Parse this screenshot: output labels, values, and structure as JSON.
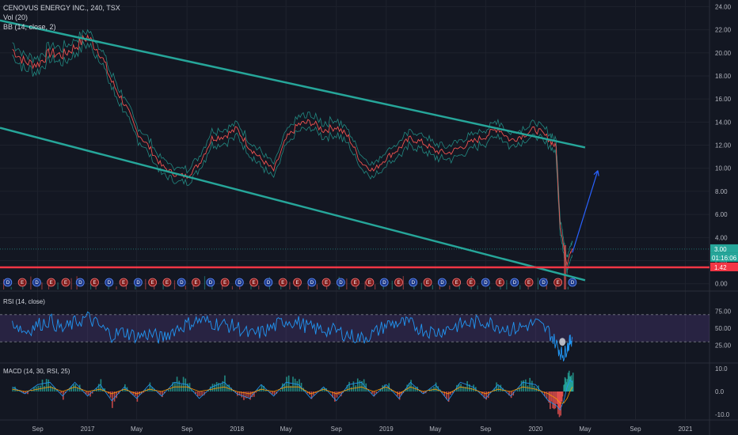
{
  "header": {
    "symbol": "CENOVUS ENERGY INC., 240, TSX",
    "vol_label": "Vol (20)",
    "bb_label": "BB (14, close, 2)"
  },
  "panes": {
    "rsi_label": "RSI (14, close)",
    "macd_label": "MACD (14, 30, RSI, 25)"
  },
  "chart_data": {
    "type": "line",
    "price": {
      "y_ticks": [
        "24.00",
        "22.00",
        "20.00",
        "18.00",
        "16.00",
        "14.00",
        "12.00",
        "10.00",
        "8.00",
        "6.00",
        "4.00",
        "2.00",
        "0.00"
      ],
      "ylim": [
        -0.5,
        24.3
      ],
      "x": [
        "2016-07",
        "2016-08",
        "2016-09",
        "2016-10",
        "2016-11",
        "2016-12",
        "2017-01",
        "2017-02",
        "2017-03",
        "2017-04",
        "2017-05",
        "2017-06",
        "2017-07",
        "2017-08",
        "2017-09",
        "2017-10",
        "2017-11",
        "2017-12",
        "2018-01",
        "2018-02",
        "2018-03",
        "2018-04",
        "2018-05",
        "2018-06",
        "2018-07",
        "2018-08",
        "2018-09",
        "2018-10",
        "2018-11",
        "2018-12",
        "2019-01",
        "2019-02",
        "2019-03",
        "2019-04",
        "2019-05",
        "2019-06",
        "2019-07",
        "2019-08",
        "2019-09",
        "2019-10",
        "2019-11",
        "2019-12",
        "2020-01",
        "2020-02",
        "2020-02-20",
        "2020-03",
        "2020-03-10",
        "2020-03-18",
        "2020-03-25",
        "2020-03-31"
      ],
      "close": [
        20.3,
        19.2,
        19.0,
        20.0,
        19.8,
        20.5,
        21.4,
        20.0,
        17.5,
        15.6,
        13.2,
        11.8,
        10.2,
        9.5,
        9.3,
        10.4,
        12.6,
        12.8,
        13.4,
        11.8,
        10.8,
        9.8,
        12.5,
        13.8,
        14.0,
        13.3,
        13.6,
        12.7,
        10.5,
        9.8,
        10.9,
        11.7,
        12.6,
        12.2,
        11.5,
        11.3,
        11.8,
        12.3,
        12.8,
        13.5,
        12.4,
        12.9,
        13.4,
        12.6,
        11.8,
        5.0,
        3.2,
        1.6,
        2.6,
        3.0
      ],
      "last_price": "3.00",
      "countdown": "01:16:06",
      "support_level": 1.42,
      "support_label": "1.42"
    },
    "drawings": {
      "upper_channel": {
        "x": [
          "2016-06",
          "2020-05"
        ],
        "y": [
          22.8,
          11.8
        ]
      },
      "lower_channel": {
        "x": [
          "2016-06",
          "2020-05"
        ],
        "y": [
          13.5,
          0.3
        ]
      },
      "projection_arrow": {
        "x": [
          "2020-03-31",
          "2020-06"
        ],
        "y": [
          2.7,
          9.8
        ]
      },
      "support_line_color": "#f23645",
      "channel_color": "#26a69a",
      "arrow_color": "#2962ff"
    },
    "events": [
      "D",
      "E",
      "D",
      "E",
      "E",
      "D",
      "E",
      "D",
      "E",
      "D",
      "E",
      "E",
      "D",
      "E",
      "D",
      "E",
      "D",
      "E",
      "D",
      "E",
      "E",
      "D",
      "E",
      "D",
      "E",
      "E",
      "D",
      "E",
      "D",
      "E",
      "D",
      "E",
      "E",
      "D",
      "E",
      "D",
      "E",
      "D",
      "E",
      "D"
    ],
    "rsi": {
      "y_ticks": [
        "75.00",
        "50.00",
        "25.00"
      ],
      "ylim": [
        0,
        100
      ],
      "band": [
        30,
        70
      ],
      "values": [
        60,
        45,
        55,
        62,
        48,
        58,
        66,
        52,
        40,
        45,
        38,
        42,
        35,
        48,
        56,
        62,
        58,
        55,
        52,
        40,
        44,
        52,
        62,
        58,
        50,
        48,
        46,
        40,
        35,
        42,
        55,
        58,
        56,
        48,
        44,
        50,
        55,
        58,
        60,
        54,
        48,
        52,
        58,
        46,
        28,
        15,
        10,
        22,
        30,
        36
      ]
    },
    "macd": {
      "y_ticks": [
        "10.0",
        "0.0",
        "-10.0"
      ],
      "ylim": [
        -12,
        12
      ],
      "hist": [
        3,
        -2,
        4,
        5,
        -3,
        6,
        -4,
        5,
        -6,
        3,
        -5,
        4,
        -3,
        6,
        5,
        -4,
        3,
        6,
        -2,
        -5,
        4,
        -3,
        6,
        5,
        -4,
        3,
        -5,
        4,
        6,
        -3,
        5,
        -4,
        6,
        -2,
        4,
        -5,
        6,
        3,
        -4,
        5,
        -3,
        6,
        4,
        -6,
        -8,
        -10,
        5,
        7,
        8,
        7
      ],
      "line": [
        2,
        -1,
        3,
        4,
        -2,
        4,
        -2,
        3,
        -4,
        2,
        -3,
        3,
        -2,
        4,
        3,
        -3,
        2,
        4,
        -1,
        -3,
        3,
        -2,
        4,
        3,
        -3,
        2,
        -4,
        3,
        4,
        -2,
        3,
        -3,
        4,
        -1,
        3,
        -4,
        4,
        2,
        -3,
        3,
        -2,
        4,
        3,
        -4,
        -6,
        -8,
        -4,
        2,
        5,
        4
      ],
      "signal": [
        1,
        0,
        1,
        2,
        0,
        2,
        0,
        1,
        -1,
        1,
        -1,
        1,
        0,
        2,
        2,
        0,
        1,
        2,
        0,
        -1,
        1,
        0,
        2,
        2,
        -1,
        1,
        -1,
        1,
        2,
        0,
        2,
        -1,
        2,
        0,
        1,
        -1,
        2,
        1,
        -1,
        1,
        0,
        2,
        1,
        -1,
        -3,
        -5,
        -5,
        -3,
        0,
        2
      ]
    },
    "x_ticks": [
      {
        "label": "Sep",
        "x": "2016-09"
      },
      {
        "label": "2017",
        "x": "2017-01"
      },
      {
        "label": "May",
        "x": "2017-05"
      },
      {
        "label": "Sep",
        "x": "2017-09"
      },
      {
        "label": "2018",
        "x": "2018-01"
      },
      {
        "label": "May",
        "x": "2018-05"
      },
      {
        "label": "Sep",
        "x": "2018-09"
      },
      {
        "label": "2019",
        "x": "2019-01"
      },
      {
        "label": "May",
        "x": "2019-05"
      },
      {
        "label": "Sep",
        "x": "2019-09"
      },
      {
        "label": "2020",
        "x": "2020-01"
      },
      {
        "label": "May",
        "x": "2020-05"
      },
      {
        "label": "Sep",
        "x": "2020-09"
      },
      {
        "label": "2021",
        "x": "2021-01"
      }
    ],
    "xlim": [
      "2016-06-01",
      "2021-03-01"
    ],
    "colors": {
      "price": "#ef5350",
      "band": "#26a69a",
      "rsi": "#2196f3",
      "rsi_band": "#7e57c2",
      "macd_pos": "#26a69a",
      "macd_neg": "#ef5350",
      "macd_line": "#2196f3",
      "signal_line": "#ff9800"
    }
  }
}
